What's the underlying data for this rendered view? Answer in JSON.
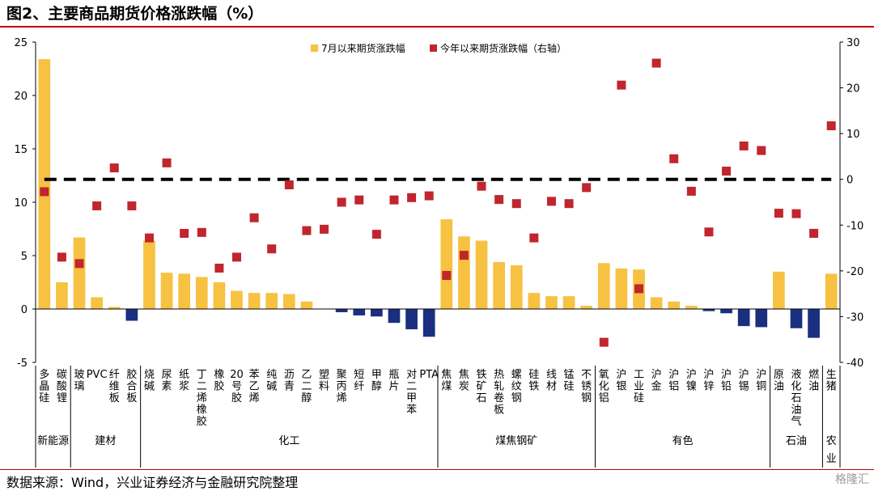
{
  "title": "图2、主要商品期货价格涨跌幅（%）",
  "source": "数据来源：Wind，兴业证券经济与金融研究院整理",
  "watermark": "格隆汇",
  "colors": {
    "up": "#f7c142",
    "down": "#1a2f80",
    "marker": "#c0262c",
    "title_rule": "#c00000"
  },
  "chart_data": {
    "type": "bar",
    "legend_position": "top",
    "categories": [
      "多晶硅",
      "碳酸锂",
      "玻璃",
      "PVC",
      "纤维板",
      "胶合板",
      "烧碱",
      "尿素",
      "纸浆",
      "丁二烯橡胶",
      "橡胶",
      "20号胶",
      "苯乙烯",
      "纯碱",
      "沥青",
      "乙二醇",
      "塑料",
      "聚丙烯",
      "短纤",
      "甲醇",
      "瓶片",
      "对二甲苯",
      "PTA",
      "焦煤",
      "焦炭",
      "铁矿石",
      "热轧卷板",
      "螺纹钢",
      "硅铁",
      "线材",
      "锰硅",
      "不锈钢",
      "氧化铝",
      "沪银",
      "工业硅",
      "沪金",
      "沪铝",
      "沪镍",
      "沪锌",
      "沪铅",
      "沪锡",
      "沪铜",
      "原油",
      "液化石油气",
      "燃油",
      "生猪"
    ],
    "groups": [
      {
        "name": "新能源",
        "count": 2
      },
      {
        "name": "建材",
        "count": 4
      },
      {
        "name": "化工",
        "count": 17
      },
      {
        "name": "煤焦钢矿",
        "count": 9
      },
      {
        "name": "有色",
        "count": 10
      },
      {
        "name": "石油",
        "count": 3
      },
      {
        "name": "农业",
        "count": 1
      }
    ],
    "series": [
      {
        "name": "7月以来期货涨跌幅",
        "axis": "left",
        "kind": "bar",
        "values": [
          23.4,
          2.5,
          6.7,
          1.1,
          0.2,
          -1.1,
          6.4,
          3.4,
          3.3,
          3.0,
          2.5,
          1.7,
          1.5,
          1.5,
          1.4,
          0.7,
          0.0,
          -0.3,
          -0.6,
          -0.7,
          -1.3,
          -1.9,
          -2.6,
          8.4,
          6.8,
          6.4,
          4.4,
          4.1,
          1.5,
          1.2,
          1.2,
          0.3,
          4.3,
          3.8,
          3.7,
          1.1,
          0.7,
          0.3,
          -0.2,
          -0.4,
          -1.6,
          -1.7,
          3.5,
          -1.8,
          -2.7,
          3.3
        ]
      },
      {
        "name": "今年以来期货涨跌幅（右轴）",
        "axis": "right",
        "kind": "scatter",
        "values": [
          -2.7,
          -17.0,
          -18.4,
          -5.8,
          2.5,
          -5.8,
          -12.8,
          3.6,
          -11.8,
          -11.6,
          -19.4,
          -17.0,
          -8.4,
          -15.2,
          -1.2,
          -11.2,
          -10.9,
          -5.0,
          -4.5,
          -12.0,
          -4.5,
          -4.0,
          -3.6,
          -21.0,
          -16.6,
          -1.5,
          -4.4,
          -5.3,
          -12.8,
          -4.8,
          -5.3,
          -1.8,
          -35.6,
          20.6,
          -23.9,
          25.4,
          4.5,
          -2.6,
          -11.5,
          1.8,
          7.3,
          6.3,
          -7.4,
          -7.5,
          -11.8,
          11.7
        ]
      }
    ],
    "y_left": {
      "min": -5,
      "max": 25,
      "ticks": [
        -5,
        0,
        5,
        10,
        15,
        20,
        25
      ]
    },
    "y_right": {
      "min": -40,
      "max": 30,
      "ticks": [
        -40,
        -30,
        -20,
        -10,
        0,
        10,
        20,
        30
      ]
    }
  }
}
